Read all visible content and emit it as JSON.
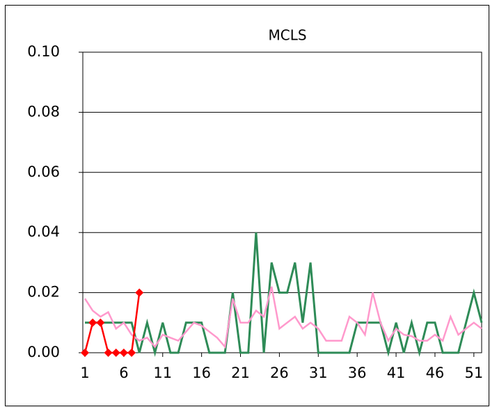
{
  "chart_data": {
    "type": "line",
    "title": "MCLS",
    "categories": [
      "1",
      null,
      null,
      null,
      null,
      "6",
      null,
      null,
      null,
      null,
      "11",
      null,
      null,
      null,
      null,
      "16",
      null,
      null,
      null,
      null,
      "21",
      null,
      null,
      null,
      null,
      "26",
      null,
      null,
      null,
      null,
      "31",
      null,
      null,
      null,
      null,
      "36",
      null,
      null,
      null,
      null,
      "41",
      null,
      null,
      null,
      null,
      "46",
      null,
      null,
      null,
      null,
      "51",
      null
    ],
    "series": [
      {
        "color": "#2e8b57",
        "width": 3,
        "values": [
          0.01,
          0.01,
          0.01,
          0.01,
          0.01,
          0.01,
          0.01,
          0,
          0.01,
          0,
          0.01,
          0,
          0,
          0.01,
          0.01,
          0.01,
          0,
          0,
          0,
          0.02,
          0,
          0,
          0.04,
          0,
          0.03,
          0.02,
          0.02,
          0.03,
          0.01,
          0.03,
          0,
          0,
          0,
          0,
          0,
          0.01,
          0.01,
          0.01,
          0.01,
          0,
          0.01,
          0,
          0.01,
          0,
          0.01,
          0.01,
          0,
          0,
          0,
          0.01,
          0.02,
          0.01
        ]
      },
      {
        "color": "#ff99cc",
        "width": 2.5,
        "values": [
          0.018,
          0.014,
          0.012,
          0.0135,
          0.008,
          0.01,
          0.006,
          0.004,
          0.005,
          0.002,
          0.006,
          0.005,
          0.004,
          0.007,
          0.01,
          0.009,
          0.007,
          0.005,
          0.002,
          0.018,
          0.01,
          0.01,
          0.014,
          0.012,
          0.022,
          0.008,
          0.01,
          0.012,
          0.008,
          0.01,
          0.008,
          0.004,
          0.004,
          0.004,
          0.012,
          0.01,
          0.006,
          0.02,
          0.01,
          0.004,
          0.008,
          0.006,
          0.0055,
          0.004,
          0.004,
          0.006,
          0.004,
          0.012,
          0.006,
          0.008,
          0.01,
          0.008
        ]
      },
      {
        "color": "#ff0000",
        "width": 2.5,
        "marker": "diamond",
        "values": [
          0,
          0.01,
          0.01,
          0,
          0,
          0,
          0,
          0.02,
          null,
          null,
          null,
          null,
          null,
          null,
          null,
          null,
          null,
          null,
          null,
          null,
          null,
          null,
          null,
          null,
          null,
          null,
          null,
          null,
          null,
          null,
          null,
          null,
          null,
          null,
          null,
          null,
          null,
          null,
          null,
          null,
          null,
          null,
          null,
          null,
          null,
          null,
          null,
          null,
          null,
          null,
          null,
          null
        ]
      }
    ],
    "ylim": [
      0,
      0.1
    ],
    "yticks": [
      {
        "value": 0,
        "label": "0.00"
      },
      {
        "value": 0.02,
        "label": "0.02"
      },
      {
        "value": 0.04,
        "label": "0.04"
      },
      {
        "value": 0.06,
        "label": "0.06"
      },
      {
        "value": 0.08,
        "label": "0.08"
      },
      {
        "value": 0.1,
        "label": "0.10"
      }
    ],
    "grid": true
  }
}
